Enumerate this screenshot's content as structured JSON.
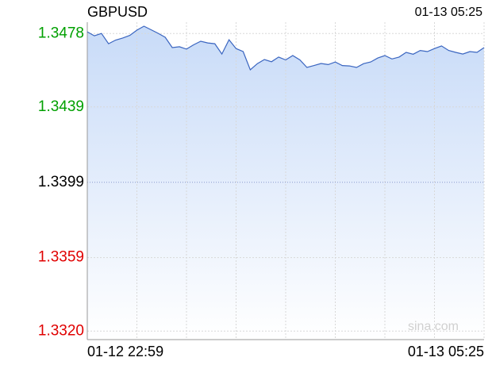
{
  "chart_data": {
    "type": "line",
    "title": "GBPUSD",
    "timestamp": "01-13 05:25",
    "x_labels": [
      "01-12 22:59",
      "01-13 05:25"
    ],
    "watermark": "sina.com",
    "values": [
      1.34789,
      1.34768,
      1.3478,
      1.34726,
      1.34745,
      1.34756,
      1.3477,
      1.34798,
      1.34819,
      1.348,
      1.34781,
      1.3476,
      1.34705,
      1.3471,
      1.34697,
      1.3472,
      1.34739,
      1.3473,
      1.34726,
      1.34671,
      1.34747,
      1.347,
      1.34684,
      1.34587,
      1.3462,
      1.34642,
      1.3463,
      1.34655,
      1.3464,
      1.34663,
      1.3464,
      1.346,
      1.3461,
      1.34621,
      1.34615,
      1.34629,
      1.3461,
      1.34608,
      1.346,
      1.3462,
      1.34629,
      1.3465,
      1.34663,
      1.34645,
      1.34655,
      1.3468,
      1.3467,
      1.3469,
      1.34684,
      1.347,
      1.34714,
      1.3469,
      1.3468,
      1.34671,
      1.34684,
      1.3468,
      1.34705
    ],
    "color": "#3a65c0",
    "fill": "#c8dbf8",
    "ylim": [
      1.3318,
      1.3484
    ],
    "yticks": [
      1.3478,
      1.3439,
      1.3399,
      1.3359,
      {
        "value": 1.332,
        "label": "1.3320"
      }
    ],
    "ytick_colors": [
      "#00a000",
      "#00a000",
      "#000000",
      "#e00000",
      "#e00000"
    ],
    "vgrid_count": 8,
    "grid": true
  }
}
